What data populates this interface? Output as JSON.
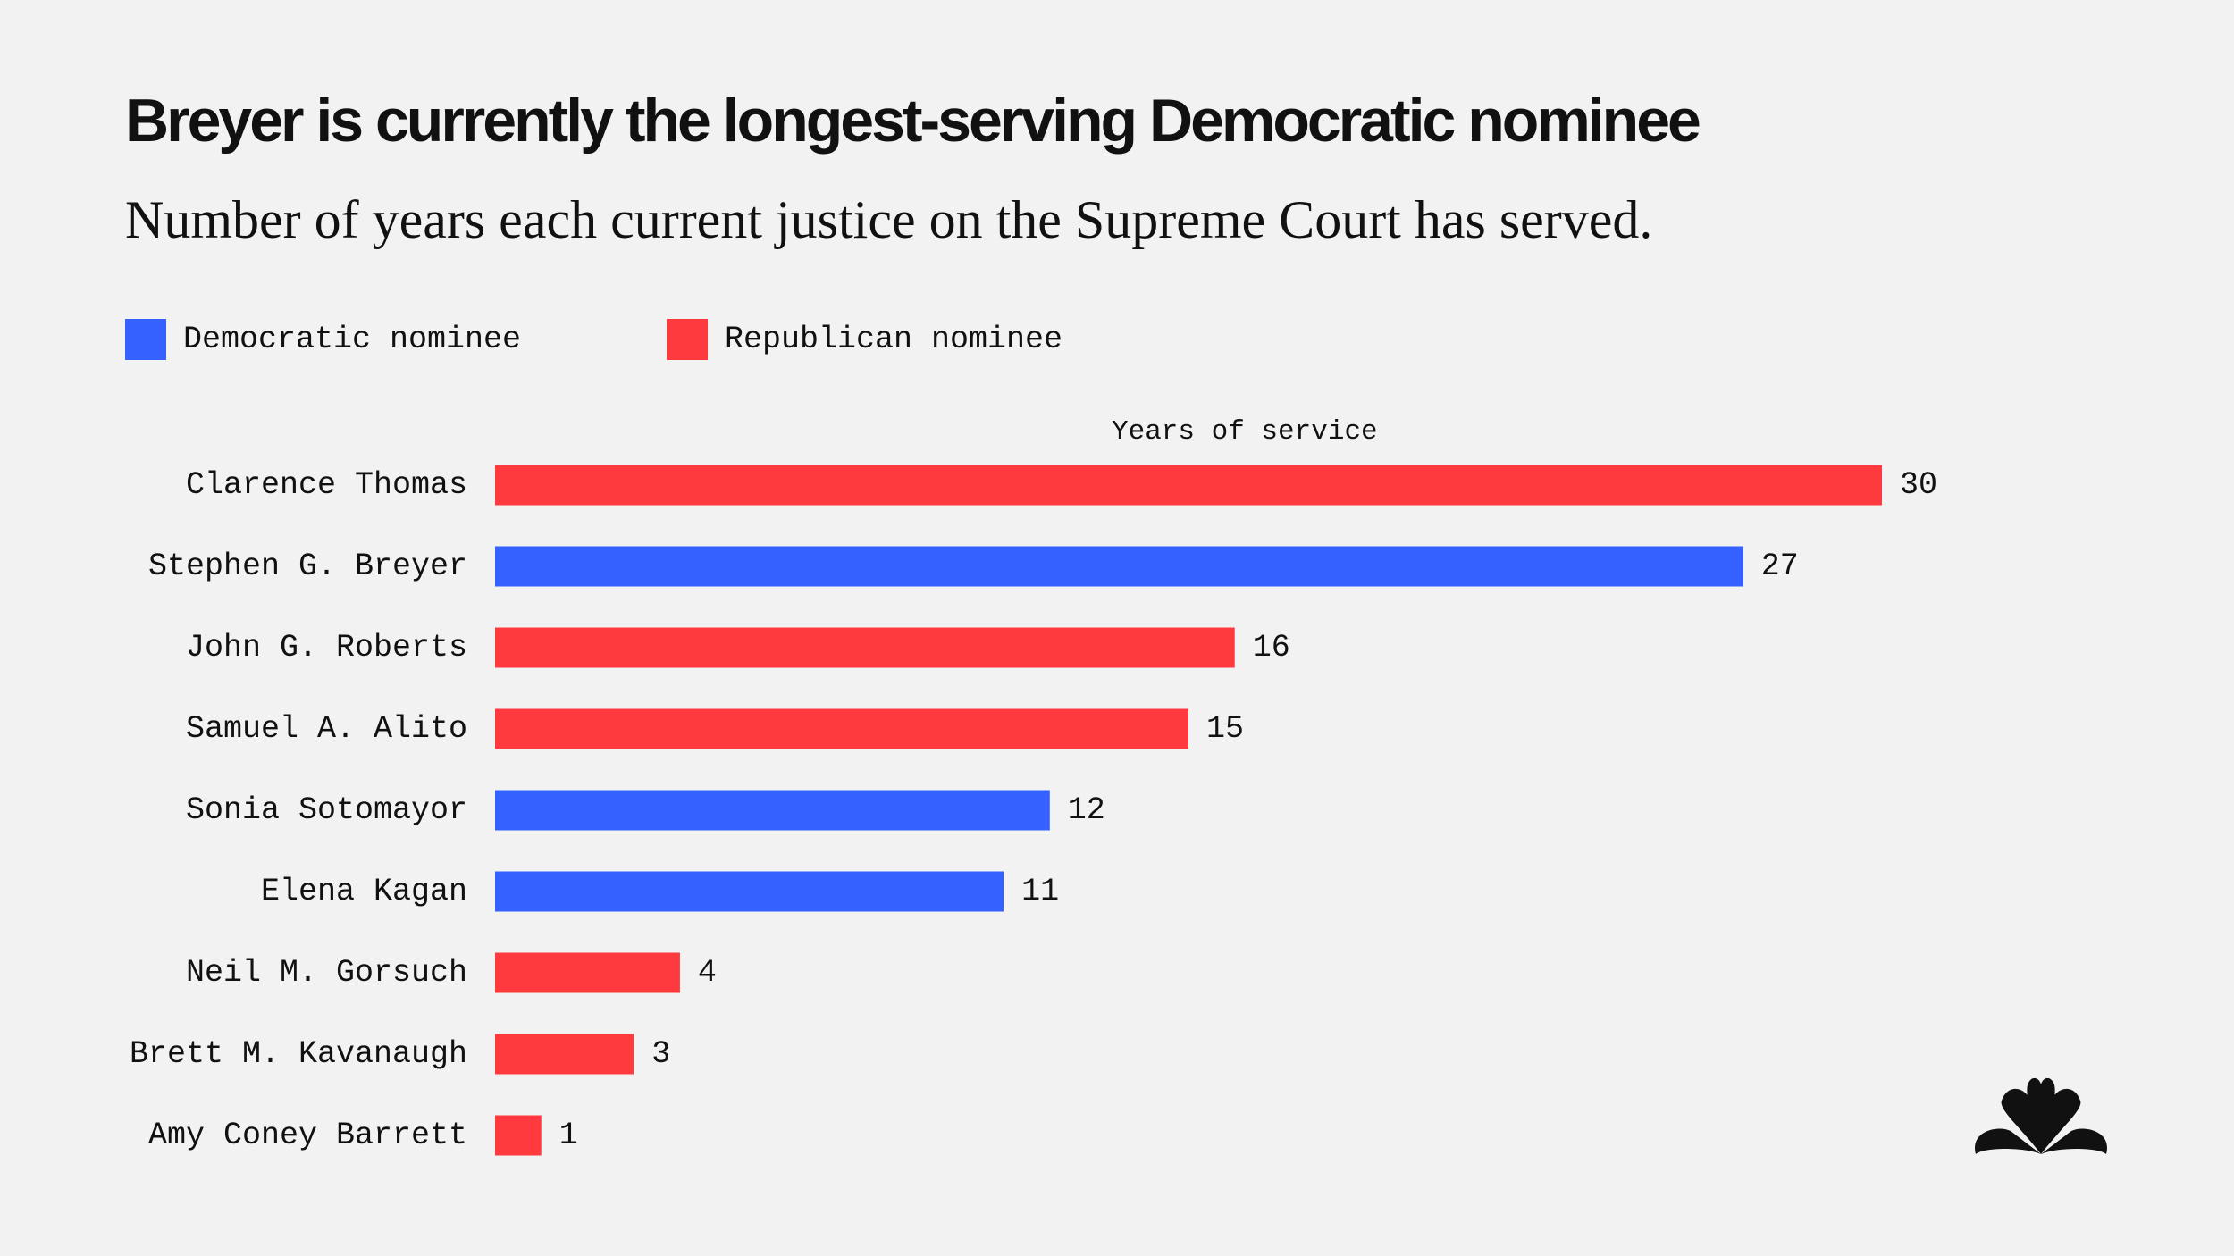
{
  "chart_data": {
    "type": "bar",
    "orientation": "horizontal",
    "title": "Breyer is currently the longest-serving Democratic nominee",
    "subtitle": "Number of years each current justice on the Supreme Court has served.",
    "xlabel": "Years of service",
    "ylabel": "",
    "xlim": [
      0,
      30
    ],
    "grid": false,
    "legend": {
      "placement": "top-left",
      "entries": [
        {
          "label": "Democratic nominee",
          "color": "#3461ff"
        },
        {
          "label": "Republican nominee",
          "color": "#ff3a3f"
        }
      ]
    },
    "categories": [
      "Clarence Thomas",
      "Stephen G. Breyer",
      "John G. Roberts",
      "Samuel A. Alito",
      "Sonia Sotomayor",
      "Elena Kagan",
      "Neil M. Gorsuch",
      "Brett M. Kavanaugh",
      "Amy Coney Barrett"
    ],
    "values": [
      30,
      27,
      16,
      15,
      12,
      11,
      4,
      3,
      1
    ],
    "party": [
      "Republican nominee",
      "Democratic nominee",
      "Republican nominee",
      "Republican nominee",
      "Democratic nominee",
      "Democratic nominee",
      "Republican nominee",
      "Republican nominee",
      "Republican nominee"
    ]
  },
  "logo": {
    "icon": "nbc-peacock-icon",
    "color": "#111111"
  }
}
